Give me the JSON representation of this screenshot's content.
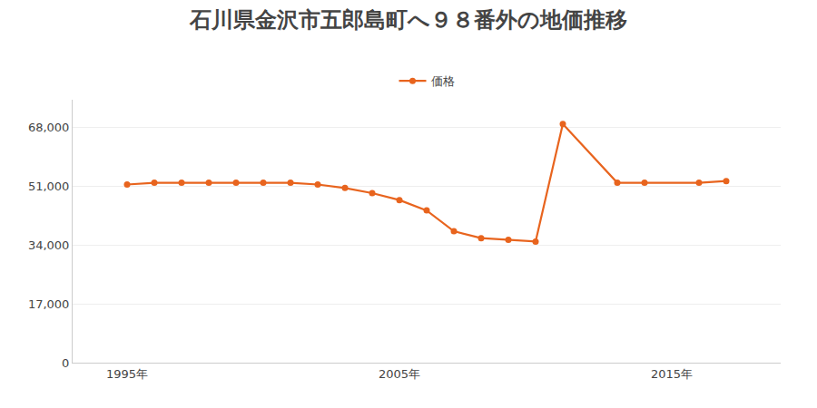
{
  "chart_data": {
    "type": "line",
    "title": "石川県金沢市五郎島町へ９８番外の地価推移",
    "x": [
      1995,
      1996,
      1997,
      1998,
      1999,
      2000,
      2001,
      2002,
      2003,
      2004,
      2005,
      2006,
      2007,
      2008,
      2009,
      2010,
      2011,
      2013,
      2014,
      2016,
      2017
    ],
    "series": [
      {
        "name": "価格",
        "color": "#e8641e",
        "values": [
          51500,
          52000,
          52000,
          52000,
          52000,
          52000,
          52000,
          51500,
          50500,
          49000,
          47000,
          44000,
          38000,
          36000,
          35500,
          35000,
          69000,
          52000,
          52000,
          52000,
          52500
        ]
      }
    ],
    "xlim": [
      1993,
      2019
    ],
    "xticks": [
      {
        "value": 1995,
        "label": "1995年"
      },
      {
        "value": 2005,
        "label": "2005年"
      },
      {
        "value": 2015,
        "label": "2015年"
      }
    ],
    "ylim": [
      0,
      76000
    ],
    "yticks": [
      0,
      {
        "value": 17000,
        "label": "17,000"
      },
      {
        "value": 34000,
        "label": "34,000"
      },
      {
        "value": 51000,
        "label": "51,000"
      },
      {
        "value": 68000,
        "label": "68,000"
      }
    ],
    "grid": "y",
    "legend": "top",
    "marker": "circle"
  }
}
